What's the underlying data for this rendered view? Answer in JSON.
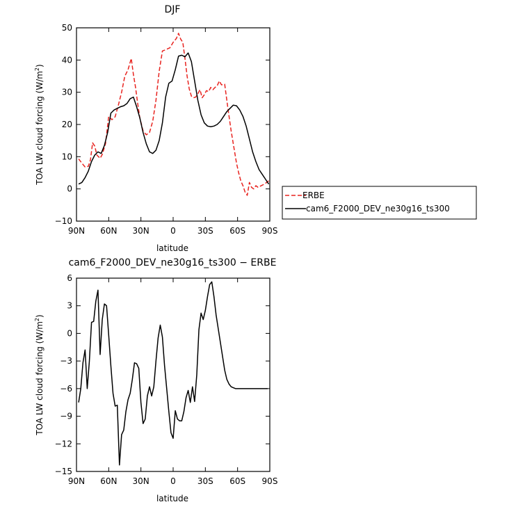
{
  "chart_data": [
    {
      "type": "line",
      "title": "DJF",
      "xlabel": "latitude",
      "ylabel": "TOA LW cloud forcing (W/m",
      "ylabel_sup": "2",
      "ylabel_end": ")",
      "xlim": [
        90,
        -90
      ],
      "ylim": [
        -10,
        50
      ],
      "x_ticks": [
        {
          "value": 90,
          "label": "90N"
        },
        {
          "value": 60,
          "label": "60N"
        },
        {
          "value": 30,
          "label": "30N"
        },
        {
          "value": 0,
          "label": "0"
        },
        {
          "value": -30,
          "label": "30S"
        },
        {
          "value": -60,
          "label": "60S"
        },
        {
          "value": -90,
          "label": "90S"
        }
      ],
      "y_ticks": [
        {
          "value": -10,
          "label": "−10"
        },
        {
          "value": 0,
          "label": "0"
        },
        {
          "value": 10,
          "label": "10"
        },
        {
          "value": 20,
          "label": "20"
        },
        {
          "value": 30,
          "label": "30"
        },
        {
          "value": 40,
          "label": "40"
        },
        {
          "value": 50,
          "label": "50"
        }
      ],
      "legend_position": "right",
      "series": [
        {
          "name": "ERBE",
          "color": "#e8231f",
          "dash": "dashed",
          "x": [
            88,
            85,
            82,
            79,
            77,
            75,
            73,
            71,
            68,
            66,
            63,
            60,
            57,
            54,
            51,
            48,
            45,
            42,
            39,
            37,
            35,
            33,
            31,
            28,
            25,
            22,
            19,
            16,
            13,
            10,
            7,
            5,
            3,
            0,
            -3,
            -5,
            -7,
            -9,
            -11,
            -13,
            -15,
            -17,
            -19,
            -21,
            -23,
            -25,
            -27,
            -29,
            -31,
            -33,
            -35,
            -37,
            -39,
            -41,
            -43,
            -45,
            -48,
            -51,
            -54,
            -57,
            -59,
            -61,
            -63,
            -65,
            -67,
            -69,
            -71,
            -73,
            -75,
            -77,
            -79,
            -82,
            -85,
            -87,
            -89
          ],
          "y": [
            9.3,
            8.0,
            6.8,
            7.0,
            9.0,
            14.3,
            13.3,
            10.5,
            9.5,
            10.7,
            14.0,
            22.5,
            21.5,
            22.4,
            26.0,
            30.0,
            35.0,
            37.0,
            40.5,
            35.5,
            31.5,
            26.5,
            22.0,
            18.0,
            16.8,
            17.5,
            21.0,
            27.5,
            36.5,
            42.8,
            43.2,
            43.5,
            43.8,
            45.5,
            46.7,
            48.3,
            46.5,
            45.5,
            40.5,
            35.0,
            31.0,
            28.8,
            28.3,
            28.5,
            29.5,
            30.8,
            28.3,
            29.2,
            30.5,
            30.2,
            31.5,
            30.8,
            31.5,
            32.0,
            33.5,
            32.3,
            32.5,
            25.0,
            18.0,
            12.0,
            8.0,
            5.0,
            2.5,
            1.0,
            -1.0,
            -2.0,
            2.0,
            0.5,
            0.0,
            1.0,
            0.5,
            1.0,
            1.5,
            2.0,
            2.5
          ]
        },
        {
          "name": "cam6_F2000_DEV_ne30g16_ts300",
          "color": "#000000",
          "dash": "solid",
          "x": [
            88,
            85,
            82,
            79,
            76,
            73,
            70,
            67,
            64,
            61,
            58,
            55,
            52,
            49,
            46,
            43,
            40,
            37,
            34,
            31,
            28,
            25,
            22,
            19,
            16,
            13,
            10,
            7,
            4,
            1,
            -2,
            -5,
            -8,
            -11,
            -14,
            -17,
            -20,
            -23,
            -26,
            -29,
            -32,
            -35,
            -38,
            -41,
            -44,
            -47,
            -50,
            -53,
            -56,
            -59,
            -62,
            -65,
            -68,
            -71,
            -74,
            -77,
            -80,
            -83,
            -86,
            -89
          ],
          "y": [
            1.5,
            2.0,
            3.5,
            5.5,
            8.5,
            10.5,
            11.5,
            11.0,
            13.5,
            17.5,
            23.5,
            24.5,
            25.0,
            25.5,
            25.8,
            26.5,
            28.0,
            28.5,
            25.5,
            22.0,
            17.5,
            14.0,
            11.5,
            11.0,
            12.0,
            15.0,
            20.5,
            28.5,
            32.8,
            33.5,
            37.0,
            41.2,
            41.5,
            41.0,
            42.2,
            39.5,
            33.5,
            27.5,
            23.0,
            20.5,
            19.5,
            19.3,
            19.5,
            20.0,
            21.0,
            22.5,
            24.0,
            25.0,
            26.0,
            25.8,
            24.5,
            22.5,
            19.5,
            15.5,
            11.5,
            8.5,
            6.0,
            4.5,
            3.0,
            1.5
          ]
        }
      ]
    },
    {
      "type": "line",
      "title": "cam6_F2000_DEV_ne30g16_ts300 − ERBE",
      "xlabel": "latitude",
      "ylabel": "TOA LW cloud forcing (W/m",
      "ylabel_sup": "2",
      "ylabel_end": ")",
      "xlim": [
        90,
        -90
      ],
      "ylim": [
        -15,
        6
      ],
      "x_ticks": [
        {
          "value": 90,
          "label": "90N"
        },
        {
          "value": 60,
          "label": "60N"
        },
        {
          "value": 30,
          "label": "30N"
        },
        {
          "value": 0,
          "label": "0"
        },
        {
          "value": -30,
          "label": "30S"
        },
        {
          "value": -60,
          "label": "60S"
        },
        {
          "value": -90,
          "label": "90S"
        }
      ],
      "y_ticks": [
        {
          "value": -15,
          "label": "−15"
        },
        {
          "value": -12,
          "label": "−12"
        },
        {
          "value": -9,
          "label": "−9"
        },
        {
          "value": -6,
          "label": "−6"
        },
        {
          "value": -3,
          "label": "−3"
        },
        {
          "value": 0,
          "label": "0"
        },
        {
          "value": 3,
          "label": "3"
        },
        {
          "value": 6,
          "label": "6"
        }
      ],
      "series": [
        {
          "color": "#000000",
          "dash": "solid",
          "x": [
            88,
            86,
            84,
            82,
            80,
            78,
            76,
            74,
            72,
            70,
            68,
            66,
            64,
            62,
            60,
            58,
            56,
            54,
            52,
            50,
            48,
            46,
            44,
            42,
            40,
            38,
            36,
            34,
            32,
            30,
            28,
            26,
            24,
            22,
            20,
            18,
            16,
            14,
            12,
            10,
            8,
            6,
            4,
            2,
            0,
            -2,
            -4,
            -6,
            -8,
            -10,
            -12,
            -14,
            -16,
            -18,
            -20,
            -22,
            -24,
            -26,
            -28,
            -30,
            -32,
            -34,
            -36,
            -38,
            -40,
            -42,
            -44,
            -46,
            -48,
            -50,
            -52,
            -54,
            -56,
            -58,
            -60,
            -62,
            -64,
            -66,
            -68,
            -70,
            -72,
            -74,
            -76,
            -78,
            -80,
            -82,
            -84,
            -86,
            -88
          ],
          "y": [
            -7.5,
            -6.0,
            -3.2,
            -1.8,
            -6.0,
            -3.0,
            1.2,
            1.3,
            3.5,
            4.7,
            -2.3,
            1.5,
            3.2,
            3.0,
            -0.2,
            -3.5,
            -6.5,
            -7.9,
            -7.8,
            -14.3,
            -11.0,
            -10.5,
            -8.5,
            -7.2,
            -6.5,
            -5.0,
            -3.2,
            -3.3,
            -3.8,
            -7.5,
            -9.8,
            -9.3,
            -6.8,
            -5.8,
            -6.8,
            -5.8,
            -3.0,
            -0.5,
            0.9,
            -0.4,
            -3.5,
            -6.0,
            -8.5,
            -10.8,
            -11.4,
            -8.4,
            -9.3,
            -9.5,
            -9.5,
            -8.5,
            -7.0,
            -6.2,
            -7.5,
            -5.8,
            -7.4,
            -4.5,
            0.4,
            2.2,
            1.5,
            2.5,
            4.0,
            5.3,
            5.6,
            4.0,
            2.0,
            0.5,
            -1.0,
            -2.5,
            -4.0,
            -5.0,
            -5.5,
            -5.8,
            -5.9,
            -6.0,
            -6.0,
            -6.0,
            -6.0,
            -6.0,
            -6.0,
            -6.0,
            -6.0,
            -6.0,
            -6.0,
            -6.0,
            -6.0,
            -6.0,
            -6.0,
            -6.0,
            -6.0
          ]
        }
      ]
    }
  ]
}
